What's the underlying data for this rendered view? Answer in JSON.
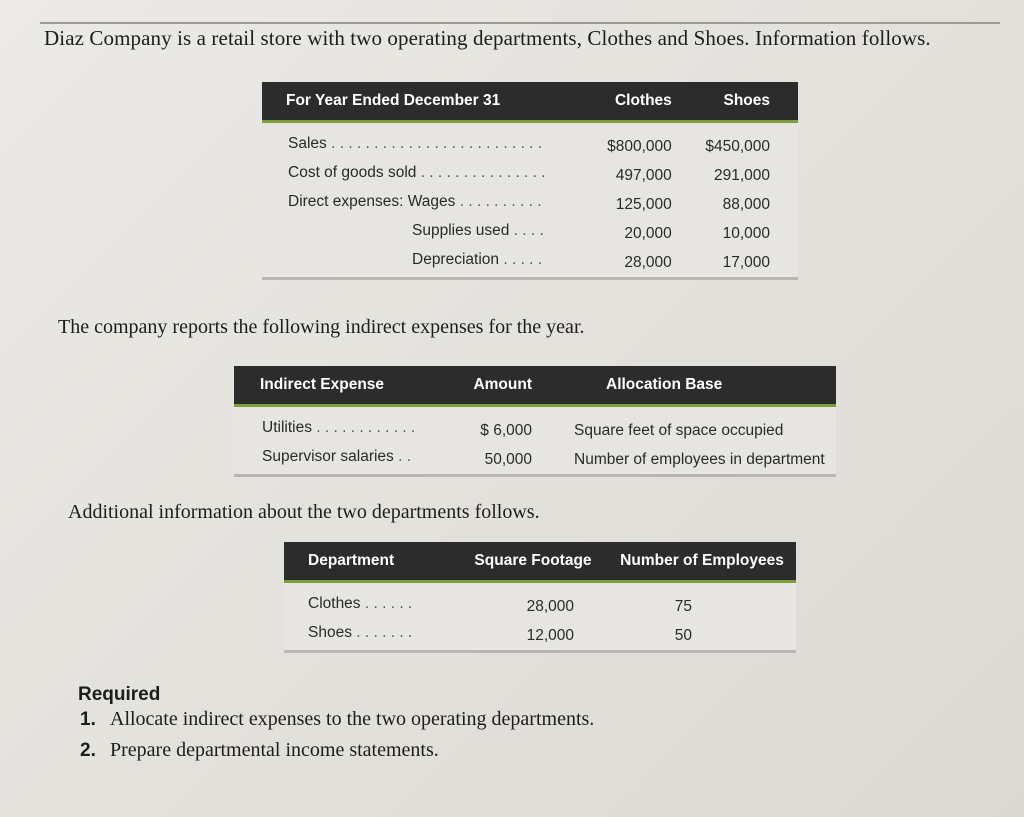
{
  "intro": "Diaz Company is a retail store with two operating departments, Clothes and Shoes. Information follows.",
  "table1": {
    "headers": [
      "For Year Ended December 31",
      "Clothes",
      "Shoes"
    ],
    "rows": [
      {
        "label": "Sales",
        "indent": false,
        "clothes": "$800,000",
        "shoes": "$450,000"
      },
      {
        "label": "Cost of goods sold",
        "indent": false,
        "clothes": "497,000",
        "shoes": "291,000"
      },
      {
        "label": "Direct expenses: Wages",
        "indent": false,
        "clothes": "125,000",
        "shoes": "88,000"
      },
      {
        "label": "Supplies used",
        "indent": true,
        "clothes": "20,000",
        "shoes": "10,000"
      },
      {
        "label": "Depreciation",
        "indent": true,
        "clothes": "28,000",
        "shoes": "17,000"
      }
    ]
  },
  "indirect_intro": "The company reports the following indirect expenses for the year.",
  "table2": {
    "headers": [
      "Indirect Expense",
      "Amount",
      "Allocation Base"
    ],
    "rows": [
      {
        "label": "Utilities",
        "amount": "$ 6,000",
        "base": "Square feet of space occupied"
      },
      {
        "label": "Supervisor salaries",
        "amount": "50,000",
        "base": "Number of employees in department"
      }
    ]
  },
  "additional_intro": "Additional information about the two departments follows.",
  "table3": {
    "headers": [
      "Department",
      "Square Footage",
      "Number of Employees"
    ],
    "rows": [
      {
        "label": "Clothes",
        "sqft": "28,000",
        "employees": "75"
      },
      {
        "label": "Shoes",
        "sqft": "12,000",
        "employees": "50"
      }
    ]
  },
  "required": {
    "heading": "Required",
    "items": [
      {
        "num": "1.",
        "text": "Allocate indirect expenses to the two operating departments."
      },
      {
        "num": "2.",
        "text": "Prepare departmental income statements."
      }
    ]
  }
}
